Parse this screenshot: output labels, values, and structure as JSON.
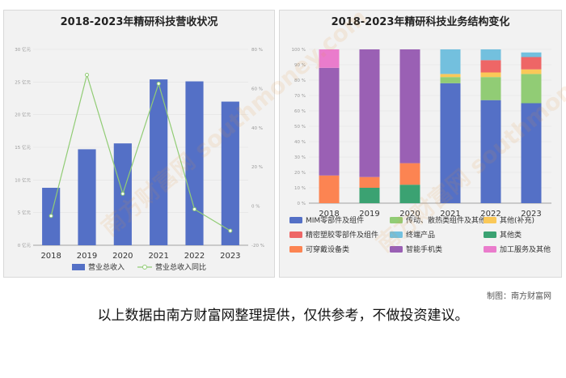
{
  "chart_data": [
    {
      "type": "bar+line",
      "title": "2018-2023年精研科技营收状况",
      "categories": [
        "2018",
        "2019",
        "2020",
        "2021",
        "2022",
        "2023"
      ],
      "left_axis": {
        "ticks": [
          "30 亿元",
          "25 亿元",
          "20 亿元",
          "15 亿元",
          "10 亿元",
          "5 亿元",
          "0 亿元"
        ],
        "ylim": [
          0,
          30
        ]
      },
      "right_axis": {
        "ticks": [
          "80 %",
          "60 %",
          "40 %",
          "20 %",
          "0 %",
          "-20 %"
        ],
        "ylim": [
          -20,
          80
        ]
      },
      "series": [
        {
          "name": "营业总收入",
          "type": "bar",
          "color": "#5470c6",
          "values": [
            8.8,
            14.7,
            15.6,
            25.4,
            25.1,
            22.0
          ]
        },
        {
          "name": "营业总收入同比",
          "type": "line",
          "color": "#91cc75",
          "values": [
            -5.0,
            67.0,
            6.3,
            62.5,
            -1.6,
            -12.6
          ]
        }
      ]
    },
    {
      "type": "stacked-bar-100",
      "title": "2018-2023年精研科技业务结构变化",
      "categories": [
        "2018",
        "2019",
        "2020",
        "2021",
        "2022",
        "2023"
      ],
      "y_ticks": [
        "100 %",
        "90 %",
        "80 %",
        "70 %",
        "60 %",
        "50 %",
        "40 %",
        "30 %",
        "20 %",
        "10 %",
        "0 %"
      ],
      "ylim": [
        0,
        100
      ],
      "series": [
        {
          "name": "MIM零部件及组件",
          "color": "#5470c6",
          "values": [
            0,
            0,
            0,
            78,
            67,
            65
          ]
        },
        {
          "name": "传动、散热类组件及其他",
          "color": "#91cc75",
          "values": [
            0,
            0,
            0,
            4,
            15,
            19
          ]
        },
        {
          "name": "其他(补充)",
          "color": "#fac858",
          "values": [
            0,
            0,
            0,
            2,
            3,
            3
          ]
        },
        {
          "name": "精密塑胶零部件及组件",
          "color": "#ee6666",
          "values": [
            0,
            0,
            0,
            0,
            8,
            8
          ]
        },
        {
          "name": "终端产品",
          "color": "#73c0de",
          "values": [
            0,
            0,
            0,
            16,
            7,
            3
          ]
        },
        {
          "name": "其他类",
          "color": "#3ba272",
          "values": [
            0,
            10,
            12,
            0,
            0,
            0
          ]
        },
        {
          "name": "可穿戴设备类",
          "color": "#fc8452",
          "values": [
            18,
            7,
            14,
            0,
            0,
            0
          ]
        },
        {
          "name": "智能手机类",
          "color": "#9a60b4",
          "values": [
            70,
            83,
            74,
            0,
            0,
            0
          ]
        },
        {
          "name": "加工服务及其他",
          "color": "#ea7ccc",
          "values": [
            12,
            0,
            0,
            0,
            0,
            0
          ]
        }
      ]
    }
  ],
  "watermark": "南方财富网 southmoney.com",
  "credit": "制图：南方财富网",
  "disclaimer": "以上数据由南方财富网整理提供，仅供参考，不做投资建议。"
}
